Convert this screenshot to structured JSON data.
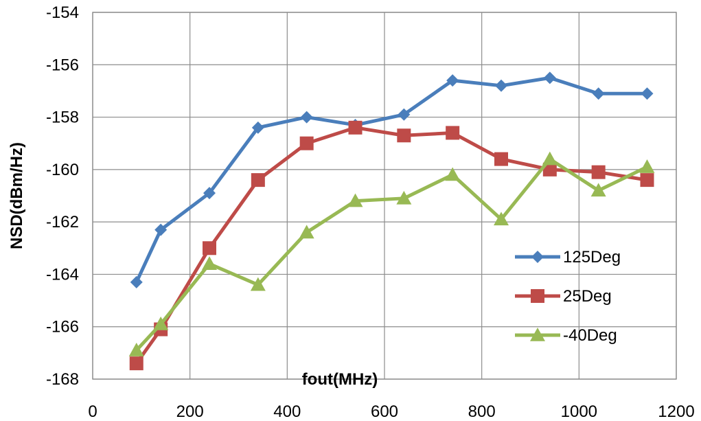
{
  "chart_data": {
    "type": "line",
    "title": "",
    "xlabel": "fout(MHz)",
    "ylabel": "NSD(dBm/Hz)",
    "xlim": [
      0,
      1200
    ],
    "ylim": [
      -168,
      -154
    ],
    "xticks": [
      0,
      200,
      400,
      600,
      800,
      1000,
      1200
    ],
    "yticks": [
      -154,
      -156,
      -158,
      -160,
      -162,
      -164,
      -166,
      -168
    ],
    "grid": true,
    "legend_position": "right",
    "x": [
      90,
      140,
      240,
      340,
      440,
      540,
      640,
      740,
      840,
      940,
      1040,
      1140
    ],
    "series": [
      {
        "name": "125Deg",
        "color": "#4a7ebb",
        "marker": "diamond",
        "values": [
          -164.3,
          -162.3,
          -160.9,
          -158.4,
          -158.0,
          -158.3,
          -157.9,
          -156.6,
          -156.8,
          -156.5,
          -157.1,
          -157.1
        ]
      },
      {
        "name": "25Deg",
        "color": "#be4b48",
        "marker": "square",
        "values": [
          -167.4,
          -166.1,
          -163.0,
          -160.4,
          -159.0,
          -158.4,
          -158.7,
          -158.6,
          -159.6,
          -160.0,
          -160.1,
          -160.4
        ]
      },
      {
        "name": "-40Deg",
        "color": "#98b954",
        "marker": "triangle",
        "values": [
          -166.9,
          -165.9,
          -163.6,
          -164.4,
          -162.4,
          -161.2,
          -161.1,
          -160.2,
          -161.9,
          -159.6,
          -160.8,
          -159.9
        ]
      }
    ]
  }
}
